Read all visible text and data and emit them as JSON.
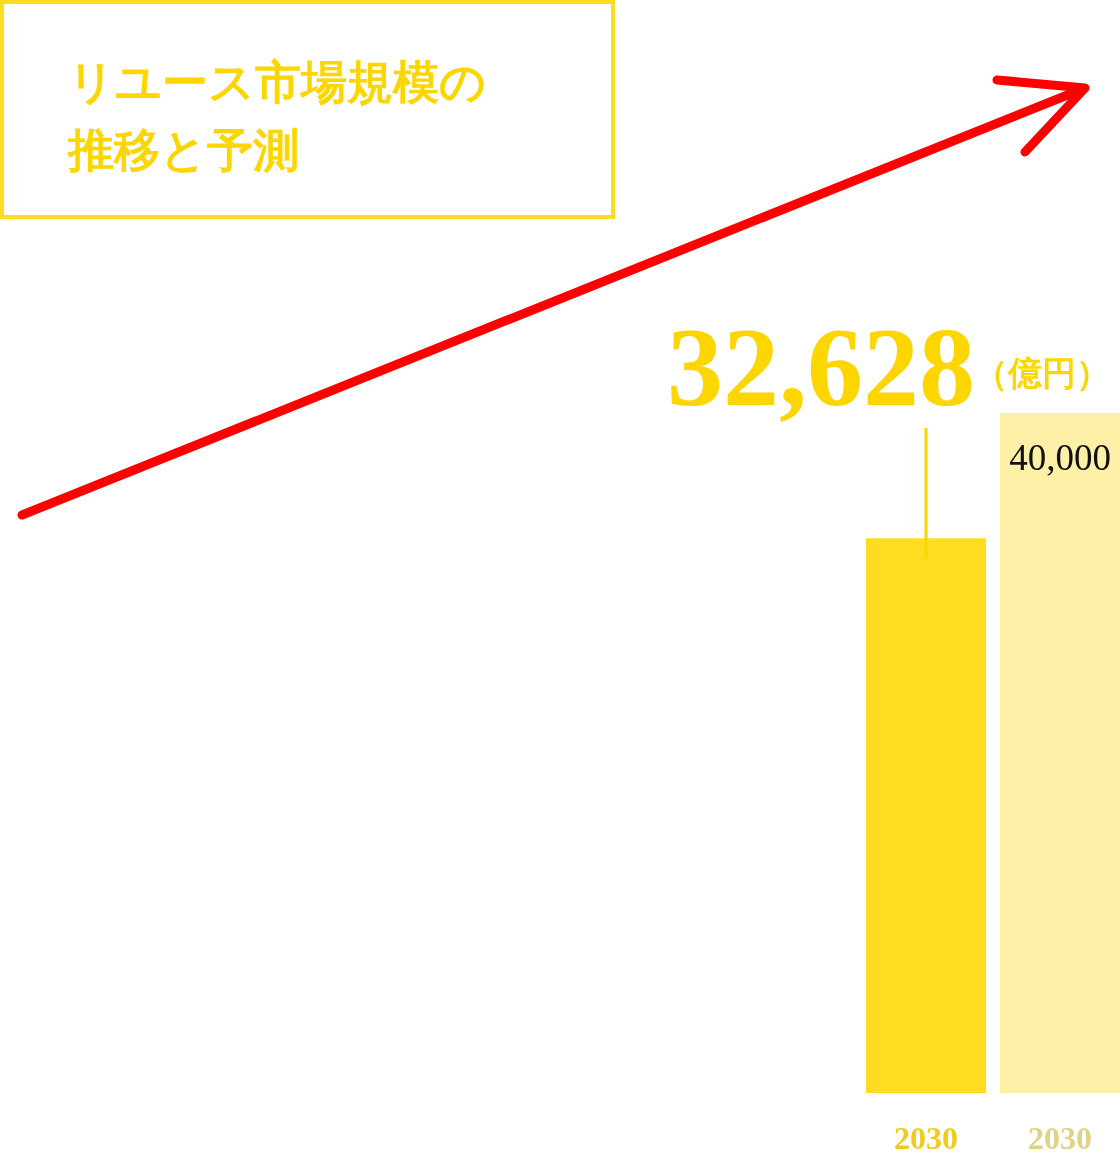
{
  "chart_data": {
    "type": "bar",
    "title": "リユース市場規模の推移と予測",
    "categories": [
      "2030",
      "2030"
    ],
    "values": [
      32628,
      40000
    ],
    "value_labels": [
      "32,628",
      "40,000"
    ],
    "colors": [
      "#fedc22",
      "#fff0a8"
    ],
    "annotations": [
      "（億円）"
    ],
    "tick_labels": "x"
  }
}
